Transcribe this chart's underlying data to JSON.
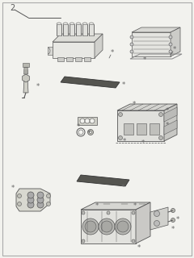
{
  "bg": "#f2f2ee",
  "lc": "#555555",
  "border": "#999999",
  "ac": "#666666",
  "fig_w": 2.4,
  "fig_h": 3.2,
  "dpi": 100,
  "page_num": "2"
}
